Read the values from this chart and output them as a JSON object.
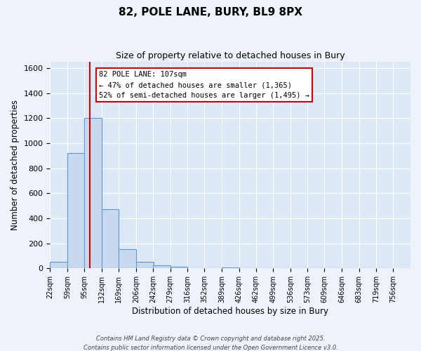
{
  "title": "82, POLE LANE, BURY, BL9 8PX",
  "subtitle": "Size of property relative to detached houses in Bury",
  "xlabel": "Distribution of detached houses by size in Bury",
  "ylabel": "Number of detached properties",
  "bar_left_edges": [
    22,
    59,
    95,
    132,
    169,
    206,
    242,
    279,
    316,
    352,
    389,
    426,
    462,
    499,
    536,
    573,
    609,
    646,
    683,
    719
  ],
  "bar_heights": [
    55,
    920,
    1200,
    475,
    155,
    55,
    25,
    15,
    0,
    0,
    10,
    0,
    0,
    0,
    0,
    0,
    0,
    0,
    0,
    0
  ],
  "bin_width": 37,
  "tick_labels": [
    "22sqm",
    "59sqm",
    "95sqm",
    "132sqm",
    "169sqm",
    "206sqm",
    "242sqm",
    "279sqm",
    "316sqm",
    "352sqm",
    "389sqm",
    "426sqm",
    "462sqm",
    "499sqm",
    "536sqm",
    "573sqm",
    "609sqm",
    "646sqm",
    "683sqm",
    "719sqm",
    "756sqm"
  ],
  "tick_positions": [
    22,
    59,
    95,
    132,
    169,
    206,
    242,
    279,
    316,
    352,
    389,
    426,
    462,
    499,
    536,
    573,
    609,
    646,
    683,
    719,
    756
  ],
  "bar_color": "#c8d9ee",
  "bar_edge_color": "#5b9bd5",
  "vline_x": 107,
  "vline_color": "#cc0000",
  "ylim": [
    0,
    1650
  ],
  "yticks": [
    0,
    200,
    400,
    600,
    800,
    1000,
    1200,
    1400,
    1600
  ],
  "xlim": [
    22,
    793
  ],
  "annotation_title": "82 POLE LANE: 107sqm",
  "annotation_line1": "← 47% of detached houses are smaller (1,365)",
  "annotation_line2": "52% of semi-detached houses are larger (1,495) →",
  "bg_color": "#eef2fb",
  "footer1": "Contains HM Land Registry data © Crown copyright and database right 2025.",
  "footer2": "Contains public sector information licensed under the Open Government Licence v3.0.",
  "grid_color": "#ffffff",
  "axes_bg_color": "#dce8f5"
}
